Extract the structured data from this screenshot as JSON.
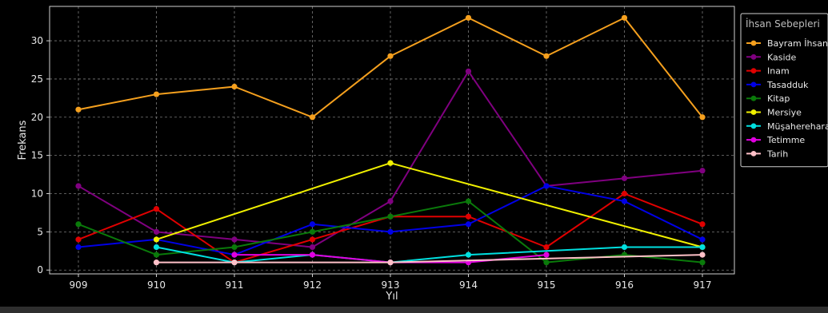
{
  "chart_data": {
    "type": "line",
    "title": "",
    "xlabel": "Yıl",
    "ylabel": "Frekans",
    "categories": [
      "909",
      "910",
      "911",
      "912",
      "913",
      "914",
      "915",
      "916",
      "917"
    ],
    "yticks": [
      0,
      5,
      10,
      15,
      20,
      25,
      30
    ],
    "ylim": [
      -0.5,
      34.5
    ],
    "grid": true,
    "legend": {
      "title": "İhsan Sebepleri",
      "placement": "top-right"
    },
    "series": [
      {
        "name": "Bayram İhsanı",
        "color": "#f5a01e",
        "values": [
          21,
          23,
          24,
          20,
          28,
          33,
          28,
          33,
          20
        ]
      },
      {
        "name": "Kaside",
        "color": "#800080",
        "values": [
          11,
          5,
          4,
          3,
          9,
          26,
          11,
          12,
          13
        ]
      },
      {
        "name": "Inam",
        "color": "#e00000",
        "values": [
          4,
          8,
          1,
          4,
          7,
          7,
          3,
          10,
          6
        ]
      },
      {
        "name": "Tasadduk",
        "color": "#0000e6",
        "values": [
          3,
          4,
          2,
          6,
          5,
          6,
          11,
          9,
          4
        ]
      },
      {
        "name": "Kitap",
        "color": "#0a7a0a",
        "values": [
          6,
          2,
          3,
          5,
          7,
          9,
          1,
          2,
          1
        ]
      },
      {
        "name": "Mersiye",
        "color": "#f0f000",
        "values": [
          null,
          4,
          null,
          null,
          14,
          null,
          null,
          null,
          3
        ]
      },
      {
        "name": "Müşahereharan",
        "color": "#00e0e0",
        "values": [
          null,
          3,
          1,
          2,
          1,
          2,
          null,
          3,
          3
        ]
      },
      {
        "name": "Tetimme",
        "color": "#e000e0",
        "values": [
          null,
          null,
          2,
          2,
          1,
          1,
          2,
          null,
          null
        ]
      },
      {
        "name": "Tarih",
        "color": "#ffc0c8",
        "values": [
          null,
          1,
          1,
          null,
          1,
          null,
          null,
          null,
          2
        ]
      }
    ]
  }
}
